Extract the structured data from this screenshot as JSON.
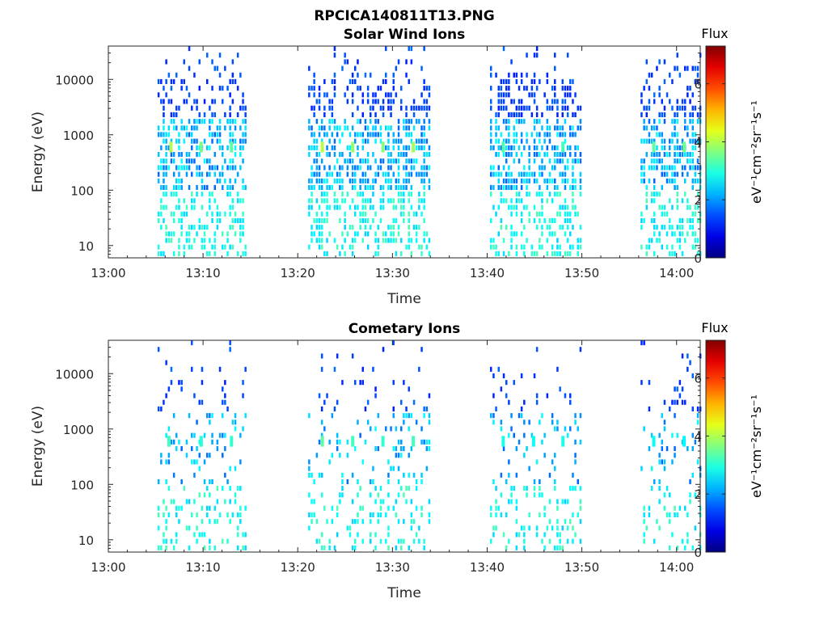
{
  "figure": {
    "title": "RPCICA140811T13.PNG"
  },
  "chart_data": [
    {
      "type": "heatmap",
      "title": "Solar Wind Ions",
      "xlabel": "Time",
      "ylabel": "Energy (eV)",
      "x_tick_labels": [
        "13:00",
        "13:10",
        "13:20",
        "13:30",
        "13:40",
        "13:50",
        "14:00"
      ],
      "x_ticks_minutes": [
        0,
        10,
        20,
        30,
        40,
        50,
        60
      ],
      "xlim_minutes": [
        0,
        62.5
      ],
      "y_scale": "log",
      "y_tick_labels": [
        "10",
        "100",
        "1000",
        "10000"
      ],
      "y_ticks": [
        10,
        100,
        1000,
        10000
      ],
      "ylim": [
        6,
        40000
      ],
      "colorbar": {
        "label": "Flux",
        "units": "eV⁻¹cm⁻²sr⁻¹s⁻¹",
        "range": [
          0,
          7.3
        ],
        "tick_labels": [
          "0",
          "2",
          "4",
          "6"
        ],
        "ticks": [
          0,
          2,
          4,
          6
        ]
      },
      "data_intervals_minutes": [
        [
          5.2,
          14.6
        ],
        [
          21.1,
          33.9
        ],
        [
          40.3,
          49.9
        ],
        [
          56.2,
          62.5
        ]
      ],
      "seed": 17,
      "density": 1.0,
      "hot_points": [
        {
          "t": 6.6,
          "e": 600,
          "v": 4.0
        },
        {
          "t": 9.8,
          "e": 600,
          "v": 3.6
        },
        {
          "t": 13.0,
          "e": 600,
          "v": 3.4
        },
        {
          "t": 22.6,
          "e": 600,
          "v": 4.1
        },
        {
          "t": 25.8,
          "e": 600,
          "v": 3.8
        },
        {
          "t": 29.0,
          "e": 600,
          "v": 3.7
        },
        {
          "t": 32.2,
          "e": 600,
          "v": 3.9
        },
        {
          "t": 41.7,
          "e": 600,
          "v": 3.3
        },
        {
          "t": 48.0,
          "e": 600,
          "v": 3.2
        },
        {
          "t": 57.6,
          "e": 600,
          "v": 3.4
        },
        {
          "t": 60.8,
          "e": 600,
          "v": 3.5
        }
      ]
    },
    {
      "type": "heatmap",
      "title": "Cometary Ions",
      "xlabel": "Time",
      "ylabel": "Energy (eV)",
      "x_tick_labels": [
        "13:00",
        "13:10",
        "13:20",
        "13:30",
        "13:40",
        "13:50",
        "14:00"
      ],
      "x_ticks_minutes": [
        0,
        10,
        20,
        30,
        40,
        50,
        60
      ],
      "xlim_minutes": [
        0,
        62.5
      ],
      "y_scale": "log",
      "y_tick_labels": [
        "10",
        "100",
        "1000",
        "10000"
      ],
      "y_ticks": [
        10,
        100,
        1000,
        10000
      ],
      "ylim": [
        6,
        40000
      ],
      "colorbar": {
        "label": "Flux",
        "units": "eV⁻¹cm⁻²sr⁻¹s⁻¹",
        "range": [
          0,
          7.3
        ],
        "tick_labels": [
          "0",
          "2",
          "4",
          "6"
        ],
        "ticks": [
          0,
          2,
          4,
          6
        ]
      },
      "data_intervals_minutes": [
        [
          5.2,
          14.6
        ],
        [
          21.1,
          33.9
        ],
        [
          40.3,
          49.9
        ],
        [
          56.2,
          62.5
        ]
      ],
      "seed": 91,
      "density": 0.28,
      "hot_points": [
        {
          "t": 6.4,
          "e": 600,
          "v": 3.2
        },
        {
          "t": 9.8,
          "e": 600,
          "v": 3.0
        },
        {
          "t": 13.0,
          "e": 600,
          "v": 3.1
        },
        {
          "t": 22.6,
          "e": 600,
          "v": 3.4
        },
        {
          "t": 25.8,
          "e": 600,
          "v": 3.2
        },
        {
          "t": 29.0,
          "e": 600,
          "v": 3.1
        },
        {
          "t": 32.2,
          "e": 600,
          "v": 3.2
        },
        {
          "t": 41.7,
          "e": 600,
          "v": 2.9
        },
        {
          "t": 44.9,
          "e": 600,
          "v": 2.8
        },
        {
          "t": 48.0,
          "e": 600,
          "v": 2.9
        },
        {
          "t": 57.6,
          "e": 600,
          "v": 2.8
        },
        {
          "t": 60.8,
          "e": 600,
          "v": 2.7
        }
      ]
    }
  ]
}
